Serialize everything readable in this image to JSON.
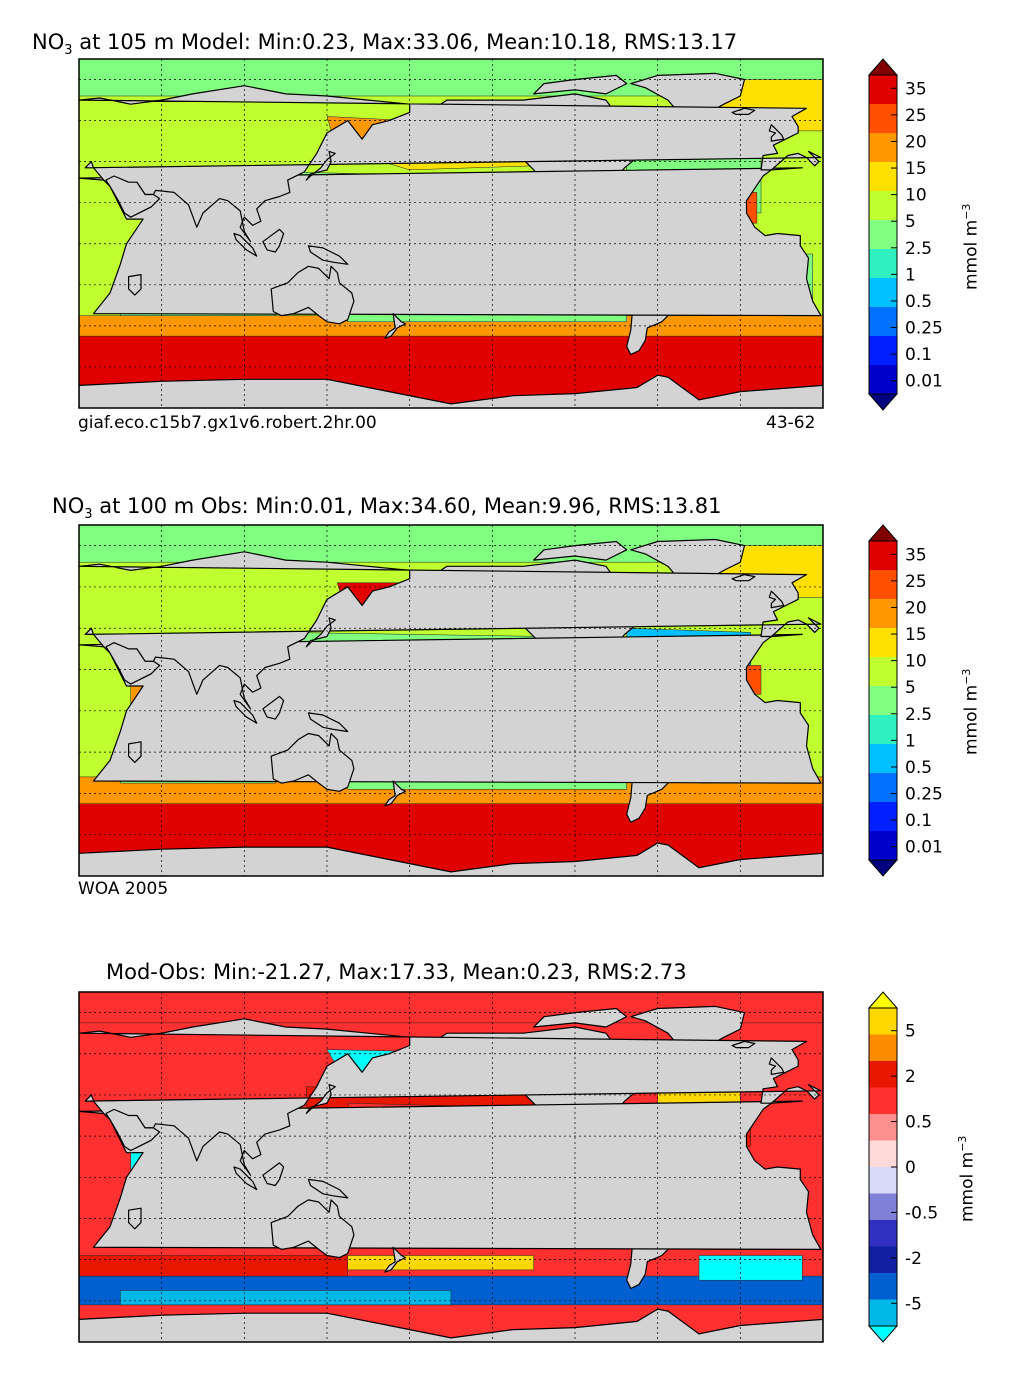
{
  "figure": {
    "panels": [
      {
        "id": "model",
        "title_prefix": "NO",
        "title_sub": "3",
        "title_rest": " at 105 m Model: Min:0.23, Max:33.06, Mean:10.18, RMS:13.17",
        "note_left": "giaf.eco.c15b7.gx1v6.robert.2hr.00",
        "note_right": "43-62"
      },
      {
        "id": "obs",
        "title_prefix": "NO",
        "title_sub": "3",
        "title_rest": " at 100 m Obs: Min:0.01, Max:34.60, Mean:9.96, RMS:13.81",
        "note_left": "WOA 2005",
        "note_right": ""
      },
      {
        "id": "diff",
        "title_prefix": "",
        "title_sub": "",
        "title_rest": "Mod-Obs: Min:-21.27, Max:17.33, Mean:0.23, RMS:2.73",
        "note_left": "",
        "note_right": ""
      }
    ],
    "unit_label": "mmol m",
    "unit_exp": "−3"
  },
  "chart_data": [
    {
      "type": "heatmap",
      "title": "NO3 at 105 m Model: Min:0.23, Max:33.06, Mean:10.18, RMS:13.17",
      "variable": "NO3",
      "depth_m": 105,
      "stats": {
        "min": 0.23,
        "max": 33.06,
        "mean": 10.18,
        "rms": 13.17
      },
      "colorbar": {
        "label": "mmol m-3",
        "levels": [
          0.01,
          0.1,
          0.25,
          0.5,
          1,
          2.5,
          5,
          10,
          15,
          20,
          25,
          35
        ],
        "tick_labels": [
          "0.01",
          "0.1",
          "0.25",
          "0.5",
          "1",
          "2.5",
          "5",
          "10",
          "15",
          "20",
          "25",
          "35"
        ],
        "colors": [
          "#00007f",
          "#0000cd",
          "#0020ff",
          "#0070ff",
          "#00c0ff",
          "#30f0c0",
          "#80ff80",
          "#c0ff30",
          "#ffe000",
          "#ff9800",
          "#ff5000",
          "#e00000",
          "#800000"
        ]
      }
    },
    {
      "type": "heatmap",
      "title": "NO3 at 100 m Obs: Min:0.01, Max:34.60, Mean:9.96, RMS:13.81",
      "variable": "NO3",
      "depth_m": 100,
      "stats": {
        "min": 0.01,
        "max": 34.6,
        "mean": 9.96,
        "rms": 13.81
      },
      "colorbar": {
        "label": "mmol m-3",
        "levels": [
          0.01,
          0.1,
          0.25,
          0.5,
          1,
          2.5,
          5,
          10,
          15,
          20,
          25,
          35
        ],
        "tick_labels": [
          "0.01",
          "0.1",
          "0.25",
          "0.5",
          "1",
          "2.5",
          "5",
          "10",
          "15",
          "20",
          "25",
          "35"
        ],
        "colors": [
          "#00007f",
          "#0000cd",
          "#0020ff",
          "#0070ff",
          "#00c0ff",
          "#30f0c0",
          "#80ff80",
          "#c0ff30",
          "#ffe000",
          "#ff9800",
          "#ff5000",
          "#e00000",
          "#800000"
        ]
      }
    },
    {
      "type": "heatmap",
      "title": "Mod-Obs: Min:-21.27, Max:17.33, Mean:0.23, RMS:2.73",
      "variable": "NO3 difference",
      "stats": {
        "min": -21.27,
        "max": 17.33,
        "mean": 0.23,
        "rms": 2.73
      },
      "colorbar": {
        "label": "mmol m-3",
        "tick_values": [
          -5,
          -2,
          -0.5,
          0,
          0.5,
          2,
          5
        ],
        "tick_labels": [
          "-5",
          "-2",
          "-0.5",
          "0",
          "0.5",
          "2",
          "5"
        ],
        "colors": [
          "#00ffff",
          "#00b8e8",
          "#0060d0",
          "#1020a0",
          "#3030c0",
          "#8080d8",
          "#d8d8f8",
          "#ffd8d8",
          "#ff9090",
          "#ff3030",
          "#e81800",
          "#ff8c00",
          "#ffd800",
          "#ffff00"
        ]
      }
    }
  ]
}
